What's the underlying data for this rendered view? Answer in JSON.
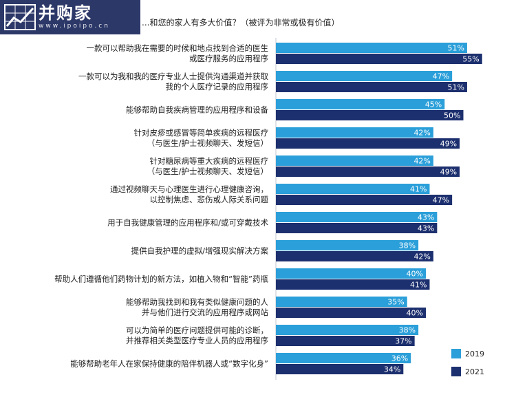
{
  "header": {
    "logo_name": "并购家",
    "logo_url": "www.ipoipo.cn",
    "title": "...和您的家人有多大价值？（被评为非常或极有价值）"
  },
  "chart_data": {
    "type": "bar",
    "orientation": "horizontal",
    "title": "...和您的家人有多大价值？（被评为非常或极有价值）",
    "xlim": [
      0,
      60
    ],
    "legend_position": "bottom-right",
    "categories": [
      [
        "一款可以帮助我在需要的时候和地点找到合适的医生",
        "或医疗服务的应用程序"
      ],
      [
        "一款可以为我和我的医疗专业人士提供沟通渠道并获取",
        "我的个人医疗记录的应用程序"
      ],
      [
        "能够帮助自我疾病管理的应用程序和设备"
      ],
      [
        "针对皮疹或感冒等简单疾病的远程医疗",
        "（与医生/护士视频聊天、发短信）"
      ],
      [
        "针对糖尿病等重大疾病的远程医疗",
        "（与医生/护士视频聊天、发短信）"
      ],
      [
        "通过视频聊天与心理医生进行心理健康咨询，",
        "以控制焦虑、悲伤或人际关系问题"
      ],
      [
        "用于自我健康管理的应用程序和/或可穿戴技术"
      ],
      [
        "提供自我护理的虚拟/增强现实解决方案"
      ],
      [
        "帮助人们遵循他们药物计划的新方法，如植入物和“智能”药瓶"
      ],
      [
        "能够帮助我找到和我有类似健康问题的人",
        "并与他们进行交流的应用程序或网站"
      ],
      [
        "可以为简单的医疗问题提供可能的诊断，",
        "并推荐相关类型医疗专业人员的应用程序"
      ],
      [
        "能够帮助老年人在家保持健康的陪伴机器人或“数字化身”"
      ]
    ],
    "series": [
      {
        "name": "2019",
        "color": "#2b9fd9",
        "values": [
          51,
          47,
          45,
          42,
          42,
          41,
          43,
          38,
          40,
          35,
          38,
          36
        ]
      },
      {
        "name": "2021",
        "color": "#1c2f6e",
        "values": [
          55,
          51,
          50,
          49,
          49,
          47,
          43,
          42,
          41,
          40,
          37,
          34
        ]
      }
    ],
    "value_suffix": "%"
  }
}
